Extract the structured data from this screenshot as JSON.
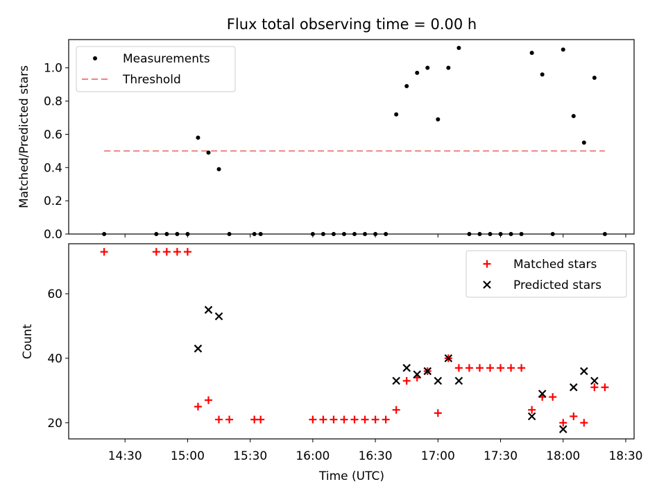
{
  "chart_data": [
    {
      "type": "scatter",
      "title": "Flux total observing time = 0.00 h",
      "xlabel": "",
      "ylabel": "Matched/Predicted stars",
      "xlim": [
        "14:03",
        "18:34"
      ],
      "ylim": [
        0,
        1.17
      ],
      "yticks": [
        "0.0",
        "0.2",
        "0.4",
        "0.6",
        "0.8",
        "1.0"
      ],
      "legend_position": "top-left",
      "grid": false,
      "series": [
        {
          "name": "Measurements",
          "kind": "points",
          "color": "#000000",
          "x": [
            "14:20",
            "14:45",
            "14:50",
            "14:55",
            "15:00",
            "15:05",
            "15:10",
            "15:15",
            "15:20",
            "15:32",
            "15:35",
            "16:00",
            "16:05",
            "16:10",
            "16:15",
            "16:20",
            "16:25",
            "16:30",
            "16:35",
            "16:40",
            "16:45",
            "16:50",
            "16:55",
            "17:00",
            "17:05",
            "17:10",
            "17:15",
            "17:20",
            "17:25",
            "17:30",
            "17:35",
            "17:40",
            "17:45",
            "17:50",
            "17:55",
            "18:00",
            "18:05",
            "18:10",
            "18:15",
            "18:20"
          ],
          "y": [
            0,
            0,
            0,
            0,
            0,
            0.58,
            0.49,
            0.39,
            0,
            0,
            0,
            0,
            0,
            0,
            0,
            0,
            0,
            0,
            0,
            0.72,
            0.89,
            0.97,
            1.0,
            0.69,
            1.0,
            1.12,
            0,
            0,
            0,
            0,
            0,
            0,
            1.09,
            0.96,
            0,
            1.11,
            0.71,
            0.55,
            0.94,
            0
          ]
        },
        {
          "name": "Threshold",
          "kind": "dashed-line",
          "color": "#f08080",
          "x": [
            "14:20",
            "18:20"
          ],
          "y": [
            0.5,
            0.5
          ]
        }
      ]
    },
    {
      "type": "scatter",
      "title": "",
      "xlabel": "Time (UTC)",
      "ylabel": "Count",
      "xlim": [
        "14:03",
        "18:34"
      ],
      "ylim": [
        15,
        75.5
      ],
      "yticks": [
        "20",
        "40",
        "60"
      ],
      "xticks": [
        "14:30",
        "15:00",
        "15:30",
        "16:00",
        "16:30",
        "17:00",
        "17:30",
        "18:00",
        "18:30"
      ],
      "legend_position": "top-right",
      "grid": false,
      "series": [
        {
          "name": "Matched stars",
          "marker": "plus",
          "color": "#ff0000",
          "x": [
            "14:20",
            "14:45",
            "14:50",
            "14:55",
            "15:00",
            "15:05",
            "15:10",
            "15:15",
            "15:20",
            "15:32",
            "15:35",
            "16:00",
            "16:05",
            "16:10",
            "16:15",
            "16:20",
            "16:25",
            "16:30",
            "16:35",
            "16:40",
            "16:45",
            "16:50",
            "16:55",
            "17:00",
            "17:05",
            "17:10",
            "17:15",
            "17:20",
            "17:25",
            "17:30",
            "17:35",
            "17:40",
            "17:45",
            "17:50",
            "17:55",
            "18:00",
            "18:05",
            "18:10",
            "18:15",
            "18:20"
          ],
          "y": [
            73,
            73,
            73,
            73,
            73,
            25,
            27,
            21,
            21,
            21,
            21,
            21,
            21,
            21,
            21,
            21,
            21,
            21,
            21,
            24,
            33,
            34,
            36,
            23,
            40,
            37,
            37,
            37,
            37,
            37,
            37,
            37,
            24,
            28,
            28,
            20,
            22,
            20,
            31,
            31
          ]
        },
        {
          "name": "Predicted stars",
          "marker": "x",
          "color": "#000000",
          "x": [
            "15:05",
            "15:10",
            "15:15",
            "16:40",
            "16:45",
            "16:50",
            "16:55",
            "17:00",
            "17:05",
            "17:10",
            "17:45",
            "17:50",
            "18:00",
            "18:05",
            "18:10",
            "18:15"
          ],
          "y": [
            43,
            55,
            53,
            33,
            37,
            35,
            36,
            33,
            40,
            33,
            22,
            29,
            18,
            31,
            36,
            33
          ]
        }
      ]
    }
  ]
}
